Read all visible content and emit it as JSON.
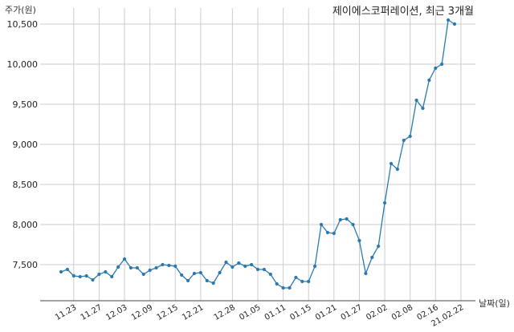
{
  "chart_data": {
    "type": "line",
    "title": "제이에스코퍼레이션, 최근 3개월",
    "ylabel": "주가(원)",
    "xlabel": "날짜(일)",
    "ylim": [
      7050,
      10700
    ],
    "yticks": [
      7500,
      8000,
      8500,
      9000,
      9500,
      10000,
      10500
    ],
    "ytick_labels": [
      "7,500",
      "8,000",
      "8,500",
      "9,000",
      "9,500",
      "10,000",
      "10,500"
    ],
    "xtick_labels": [
      "11.23",
      "11.27",
      "12.03",
      "12.09",
      "12.15",
      "12.21",
      "12.28",
      "01.05",
      "01.11",
      "01.15",
      "01.21",
      "01.27",
      "02.02",
      "02.08",
      "02.16",
      "21.02.22"
    ],
    "xtick_index": [
      2,
      6,
      10,
      14,
      18,
      22,
      27,
      31,
      35,
      39,
      43,
      47,
      51,
      55,
      59,
      63
    ],
    "grid": true,
    "color": "#2a7ab0",
    "series": [
      {
        "values": [
          7410,
          7440,
          7360,
          7350,
          7360,
          7310,
          7380,
          7410,
          7350,
          7470,
          7570,
          7460,
          7460,
          7380,
          7430,
          7460,
          7500,
          7490,
          7480,
          7370,
          7300,
          7390,
          7400,
          7300,
          7270,
          7400,
          7530,
          7470,
          7520,
          7480,
          7500,
          7440,
          7440,
          7380,
          7260,
          7210,
          7210,
          7340,
          7290,
          7290,
          7480,
          8000,
          7900,
          7890,
          8060,
          8070,
          8000,
          7800,
          7390,
          7590,
          7730,
          8270,
          8760,
          8690,
          9050,
          9100,
          9550,
          9450,
          9800,
          9950,
          10000,
          10550,
          10500
        ]
      }
    ]
  }
}
